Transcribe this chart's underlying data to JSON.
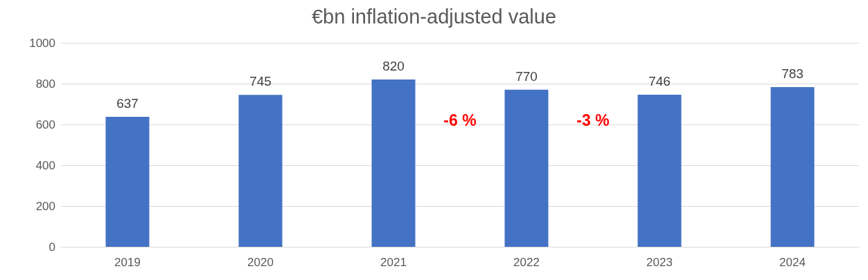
{
  "chart_data": {
    "type": "bar",
    "title": "€bn inflation-adjusted value",
    "categories": [
      "2019",
      "2020",
      "2021",
      "2022",
      "2023",
      "2024"
    ],
    "values": [
      637,
      745,
      820,
      770,
      746,
      783
    ],
    "color": "#4472c4",
    "ylim": [
      0,
      1000
    ],
    "yticks": [
      0,
      200,
      400,
      600,
      800,
      1000
    ],
    "grid": "y",
    "data_labels": true,
    "annotations": [
      "-6 %",
      "-3 %"
    ]
  }
}
